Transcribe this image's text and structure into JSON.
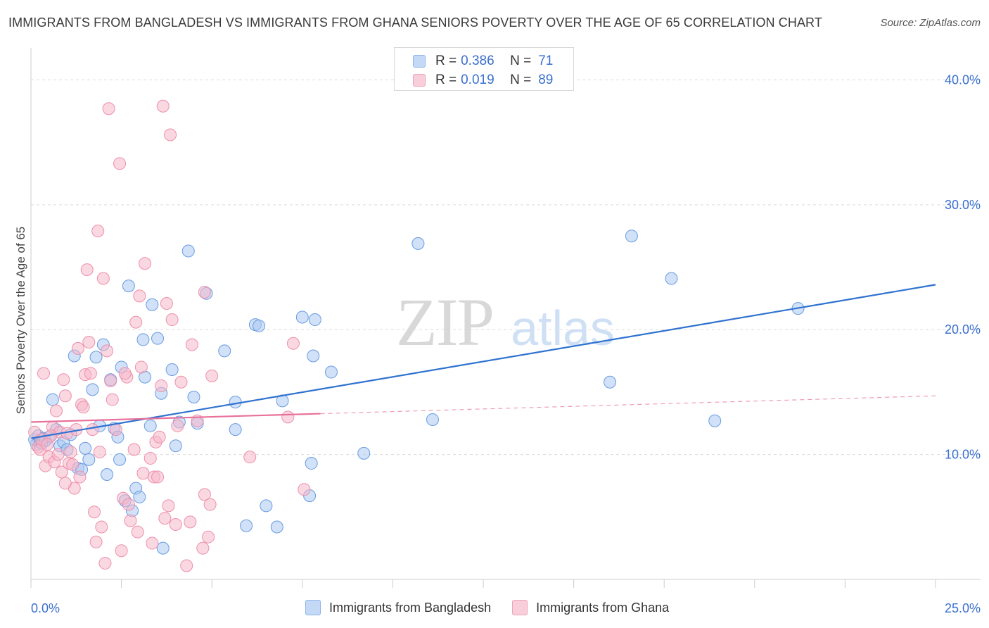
{
  "title": "IMMIGRANTS FROM BANGLADESH VS IMMIGRANTS FROM GHANA SENIORS POVERTY OVER THE AGE OF 65 CORRELATION CHART",
  "source": "Source: ZipAtlas.com",
  "watermark": {
    "zip": "ZIP",
    "atlas": "atlas"
  },
  "legend": {
    "r_label": "R =",
    "n_label": "N =",
    "rows": [
      {
        "r": "0.386",
        "n": "71",
        "color": "#a9c8f2"
      },
      {
        "r": "0.019",
        "n": "89",
        "color": "#f6b8cb"
      }
    ]
  },
  "bottom_legend": [
    {
      "label": "Immigrants from Bangladesh",
      "color": "#a9c8f2"
    },
    {
      "label": "Immigrants from Ghana",
      "color": "#f6b8cb"
    }
  ],
  "chart_data": {
    "type": "scatter",
    "ylabel": "Seniors Poverty Over the Age of 65",
    "xlim": [
      0,
      25
    ],
    "ylim": [
      0,
      42
    ],
    "x_tick_labels": [
      {
        "value": 0,
        "label": "0.0%"
      },
      {
        "value": 25,
        "label": "25.0%"
      }
    ],
    "y_tick_labels": [
      {
        "value": 10,
        "label": "10.0%"
      },
      {
        "value": 20,
        "label": "20.0%"
      },
      {
        "value": 30,
        "label": "30.0%"
      },
      {
        "value": 40,
        "label": "40.0%"
      }
    ],
    "grid": true,
    "series": [
      {
        "name": "Immigrants from Bangladesh",
        "color": "#a9c8f2",
        "stroke": "#6a9ce0",
        "line_color": "#2f72d0",
        "trend": {
          "x0": 0,
          "y0": 11.3,
          "x1": 25,
          "y1": 23.6,
          "solid_until": 25
        },
        "points": [
          [
            0.1,
            11.2
          ],
          [
            0.15,
            10.8
          ],
          [
            0.2,
            11.5
          ],
          [
            0.25,
            11.0
          ],
          [
            0.3,
            10.9
          ],
          [
            0.35,
            11.3
          ],
          [
            0.4,
            11.1
          ],
          [
            0.5,
            11.4
          ],
          [
            0.6,
            14.4
          ],
          [
            0.7,
            12.0
          ],
          [
            0.8,
            10.7
          ],
          [
            0.9,
            11.0
          ],
          [
            1.0,
            10.4
          ],
          [
            1.1,
            11.6
          ],
          [
            1.2,
            17.9
          ],
          [
            1.3,
            8.9
          ],
          [
            1.4,
            8.8
          ],
          [
            1.5,
            10.5
          ],
          [
            1.6,
            9.6
          ],
          [
            1.7,
            15.2
          ],
          [
            1.8,
            17.8
          ],
          [
            1.9,
            12.3
          ],
          [
            2.0,
            18.8
          ],
          [
            2.1,
            8.4
          ],
          [
            2.2,
            16.0
          ],
          [
            2.3,
            12.1
          ],
          [
            2.4,
            11.4
          ],
          [
            2.45,
            9.6
          ],
          [
            2.5,
            17.0
          ],
          [
            2.6,
            6.3
          ],
          [
            2.7,
            23.5
          ],
          [
            2.8,
            5.5
          ],
          [
            2.9,
            7.3
          ],
          [
            3.0,
            6.6
          ],
          [
            3.1,
            19.2
          ],
          [
            3.15,
            16.2
          ],
          [
            3.3,
            12.3
          ],
          [
            3.35,
            22.0
          ],
          [
            3.5,
            19.3
          ],
          [
            3.6,
            14.9
          ],
          [
            3.65,
            2.5
          ],
          [
            3.9,
            16.8
          ],
          [
            4.0,
            10.7
          ],
          [
            4.1,
            12.6
          ],
          [
            4.35,
            26.3
          ],
          [
            4.5,
            14.6
          ],
          [
            4.6,
            12.5
          ],
          [
            4.85,
            22.9
          ],
          [
            5.35,
            18.3
          ],
          [
            5.65,
            14.2
          ],
          [
            5.65,
            12.0
          ],
          [
            5.95,
            4.3
          ],
          [
            6.2,
            20.4
          ],
          [
            6.3,
            20.3
          ],
          [
            6.5,
            5.9
          ],
          [
            6.8,
            4.2
          ],
          [
            6.95,
            14.3
          ],
          [
            7.5,
            21.0
          ],
          [
            7.75,
            9.3
          ],
          [
            7.7,
            6.7
          ],
          [
            7.8,
            17.9
          ],
          [
            7.85,
            20.8
          ],
          [
            8.3,
            16.6
          ],
          [
            9.2,
            10.1
          ],
          [
            10.7,
            26.9
          ],
          [
            11.1,
            12.8
          ],
          [
            16.0,
            15.8
          ],
          [
            16.6,
            27.5
          ],
          [
            17.7,
            24.1
          ],
          [
            18.9,
            12.7
          ],
          [
            21.2,
            21.7
          ]
        ]
      },
      {
        "name": "Immigrants from Ghana",
        "color": "#f6b8cb",
        "stroke": "#ee8fab",
        "line_color": "#e8709a",
        "trend": {
          "x0": 0,
          "y0": 12.6,
          "x1": 25,
          "y1": 14.7,
          "solid_until": 8.0
        },
        "points": [
          [
            0.1,
            11.8
          ],
          [
            0.2,
            10.6
          ],
          [
            0.25,
            10.4
          ],
          [
            0.3,
            11.2
          ],
          [
            0.35,
            16.5
          ],
          [
            0.4,
            9.1
          ],
          [
            0.5,
            9.8
          ],
          [
            0.6,
            12.2
          ],
          [
            0.65,
            9.4
          ],
          [
            0.7,
            13.5
          ],
          [
            0.8,
            11.8
          ],
          [
            0.85,
            8.6
          ],
          [
            0.9,
            16.0
          ],
          [
            0.95,
            14.7
          ],
          [
            1.0,
            11.7
          ],
          [
            1.05,
            9.3
          ],
          [
            1.1,
            10.2
          ],
          [
            1.2,
            7.3
          ],
          [
            1.25,
            12.0
          ],
          [
            1.3,
            18.5
          ],
          [
            1.35,
            8.2
          ],
          [
            1.4,
            14.0
          ],
          [
            1.45,
            13.8
          ],
          [
            1.5,
            16.4
          ],
          [
            1.55,
            24.8
          ],
          [
            1.6,
            19.0
          ],
          [
            1.65,
            16.5
          ],
          [
            1.7,
            12.0
          ],
          [
            1.75,
            5.4
          ],
          [
            1.8,
            3.0
          ],
          [
            1.85,
            27.9
          ],
          [
            1.9,
            10.2
          ],
          [
            1.95,
            4.2
          ],
          [
            2.0,
            24.1
          ],
          [
            2.05,
            1.3
          ],
          [
            2.1,
            18.3
          ],
          [
            2.15,
            37.7
          ],
          [
            2.2,
            15.9
          ],
          [
            2.25,
            14.4
          ],
          [
            2.35,
            12.0
          ],
          [
            2.45,
            33.3
          ],
          [
            2.5,
            2.3
          ],
          [
            2.55,
            6.5
          ],
          [
            2.65,
            16.2
          ],
          [
            2.7,
            6.0
          ],
          [
            2.75,
            4.7
          ],
          [
            2.85,
            10.4
          ],
          [
            2.9,
            20.6
          ],
          [
            2.95,
            3.8
          ],
          [
            3.0,
            22.7
          ],
          [
            3.05,
            17.0
          ],
          [
            3.1,
            8.5
          ],
          [
            3.15,
            25.3
          ],
          [
            3.3,
            9.7
          ],
          [
            3.35,
            2.9
          ],
          [
            3.4,
            8.2
          ],
          [
            3.45,
            11.0
          ],
          [
            3.5,
            8.2
          ],
          [
            3.6,
            15.5
          ],
          [
            3.65,
            37.9
          ],
          [
            3.7,
            4.9
          ],
          [
            3.75,
            22.1
          ],
          [
            3.8,
            5.9
          ],
          [
            3.85,
            35.6
          ],
          [
            3.9,
            20.8
          ],
          [
            4.0,
            4.4
          ],
          [
            4.15,
            15.8
          ],
          [
            4.3,
            1.1
          ],
          [
            4.4,
            4.6
          ],
          [
            4.45,
            18.8
          ],
          [
            4.6,
            12.7
          ],
          [
            4.75,
            2.5
          ],
          [
            4.8,
            23.0
          ],
          [
            4.8,
            6.8
          ],
          [
            4.9,
            3.4
          ],
          [
            4.95,
            6.0
          ],
          [
            5.0,
            16.3
          ],
          [
            6.05,
            9.8
          ],
          [
            7.1,
            13.0
          ],
          [
            7.25,
            18.9
          ],
          [
            7.55,
            7.2
          ],
          [
            0.95,
            7.7
          ],
          [
            1.15,
            9.2
          ],
          [
            0.55,
            11.5
          ],
          [
            0.45,
            10.8
          ],
          [
            0.75,
            10.0
          ],
          [
            2.6,
            16.5
          ],
          [
            3.55,
            11.4
          ],
          [
            4.05,
            12.3
          ]
        ]
      }
    ]
  }
}
